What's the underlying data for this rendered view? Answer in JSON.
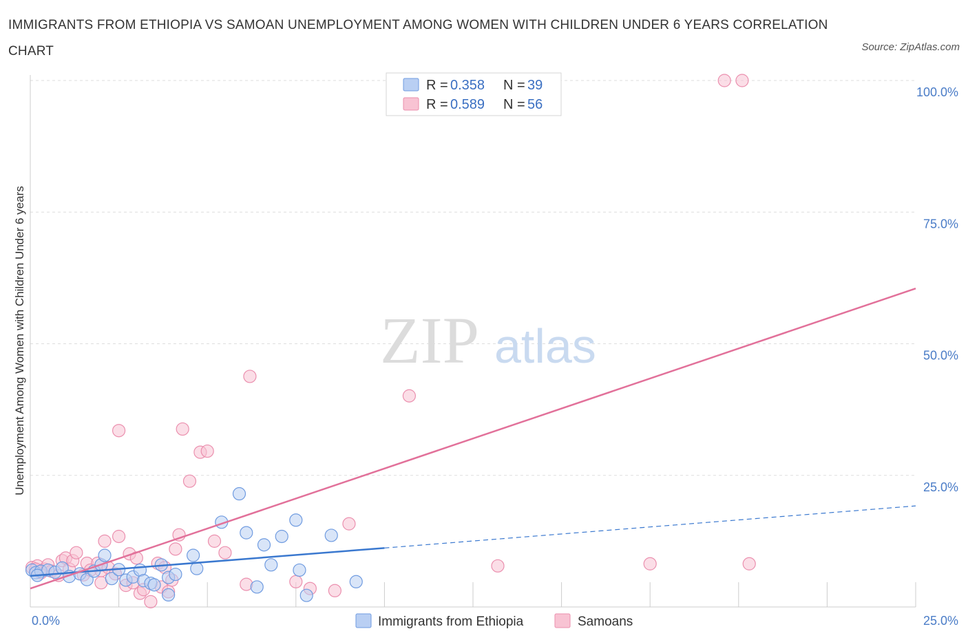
{
  "title": "IMMIGRANTS FROM ETHIOPIA VS SAMOAN UNEMPLOYMENT AMONG WOMEN WITH CHILDREN UNDER 6 YEARS CORRELATION CHART",
  "source": "Source: ZipAtlas.com",
  "watermark": {
    "zip": "ZIP",
    "atlas": "atlas"
  },
  "colors": {
    "ethiopia_fill": "#b9cff3",
    "ethiopia_stroke": "#6f9be0",
    "ethiopia_line": "#3a78cf",
    "samoan_fill": "#f8c3d3",
    "samoan_stroke": "#eb8fae",
    "samoan_line": "#e2719a",
    "grid": "#dddddd",
    "axis_label": "#4a7cc7"
  },
  "legend": {
    "rows": [
      {
        "r_label": "R = ",
        "r_value": "0.358",
        "n_label": "N = ",
        "n_value": "39"
      },
      {
        "r_label": "R = ",
        "r_value": "0.589",
        "n_label": "N = ",
        "n_value": "56"
      }
    ]
  },
  "bottom_legend": [
    "Immigrants from Ethiopia",
    "Samoans"
  ],
  "chart_data": {
    "type": "scatter",
    "title": "IMMIGRANTS FROM ETHIOPIA VS SAMOAN UNEMPLOYMENT AMONG WOMEN WITH CHILDREN UNDER 6 YEARS CORRELATION CHART",
    "xlabel": "",
    "ylabel": "Unemployment Among Women with Children Under 6 years",
    "xlim": [
      0,
      25
    ],
    "ylim": [
      0,
      100
    ],
    "x_tick_labels": [
      "0.0%",
      "25.0%"
    ],
    "y_ticks": [
      25,
      50,
      75,
      100
    ],
    "y_tick_labels": [
      "25.0%",
      "50.0%",
      "75.0%",
      "100.0%"
    ],
    "grid": true,
    "legend_position": "top-center",
    "series": [
      {
        "name": "Immigrants from Ethiopia",
        "R": 0.358,
        "N": 39,
        "trend": {
          "x0": 0,
          "y0": 5.9,
          "x1": 10,
          "y1": 11.2,
          "x_ext": 25,
          "y_ext": 19.2
        },
        "points": [
          [
            0.05,
            7.0
          ],
          [
            0.15,
            6.5
          ],
          [
            0.3,
            6.8
          ],
          [
            0.5,
            7.0
          ],
          [
            0.7,
            6.6
          ],
          [
            0.9,
            7.4
          ],
          [
            1.1,
            5.8
          ],
          [
            1.4,
            6.3
          ],
          [
            1.6,
            5.2
          ],
          [
            1.8,
            6.8
          ],
          [
            2.0,
            8.0
          ],
          [
            2.1,
            9.8
          ],
          [
            2.3,
            5.4
          ],
          [
            2.5,
            7.1
          ],
          [
            2.7,
            5.1
          ],
          [
            2.9,
            5.7
          ],
          [
            3.1,
            7.0
          ],
          [
            3.2,
            5.0
          ],
          [
            3.4,
            4.5
          ],
          [
            3.5,
            4.2
          ],
          [
            3.7,
            8.0
          ],
          [
            3.9,
            5.6
          ],
          [
            4.1,
            6.2
          ],
          [
            3.9,
            2.3
          ],
          [
            4.6,
            9.8
          ],
          [
            4.7,
            7.3
          ],
          [
            5.4,
            16.1
          ],
          [
            5.9,
            21.5
          ],
          [
            6.1,
            14.1
          ],
          [
            6.4,
            3.8
          ],
          [
            6.6,
            11.8
          ],
          [
            6.8,
            8.0
          ],
          [
            7.1,
            13.4
          ],
          [
            7.5,
            16.5
          ],
          [
            7.6,
            7.0
          ],
          [
            7.8,
            2.2
          ],
          [
            8.5,
            13.6
          ],
          [
            9.2,
            4.8
          ],
          [
            0.2,
            6.0
          ]
        ]
      },
      {
        "name": "Samoans",
        "R": 0.589,
        "N": 56,
        "trend": {
          "x0": 0,
          "y0": 3.5,
          "x1": 25,
          "y1": 60.5
        },
        "points": [
          [
            0.05,
            7.5
          ],
          [
            0.2,
            7.8
          ],
          [
            0.3,
            6.5
          ],
          [
            0.4,
            7.2
          ],
          [
            0.5,
            8.0
          ],
          [
            0.6,
            6.8
          ],
          [
            0.8,
            6.0
          ],
          [
            0.9,
            8.8
          ],
          [
            1.0,
            9.3
          ],
          [
            1.1,
            7.2
          ],
          [
            1.2,
            8.8
          ],
          [
            1.3,
            10.3
          ],
          [
            1.5,
            6.1
          ],
          [
            1.6,
            8.3
          ],
          [
            1.7,
            7.0
          ],
          [
            1.9,
            8.3
          ],
          [
            2.0,
            6.9
          ],
          [
            2.0,
            4.6
          ],
          [
            2.1,
            12.5
          ],
          [
            2.2,
            7.5
          ],
          [
            2.4,
            6.3
          ],
          [
            2.5,
            33.5
          ],
          [
            2.5,
            13.4
          ],
          [
            2.7,
            4.1
          ],
          [
            2.8,
            10.1
          ],
          [
            2.9,
            4.6
          ],
          [
            3.0,
            9.3
          ],
          [
            3.1,
            2.6
          ],
          [
            3.2,
            3.3
          ],
          [
            3.4,
            1.0
          ],
          [
            3.6,
            8.3
          ],
          [
            3.8,
            7.5
          ],
          [
            3.7,
            3.8
          ],
          [
            3.9,
            2.9
          ],
          [
            4.0,
            5.1
          ],
          [
            4.1,
            11.0
          ],
          [
            4.2,
            13.7
          ],
          [
            4.3,
            33.8
          ],
          [
            4.5,
            23.9
          ],
          [
            4.8,
            29.4
          ],
          [
            5.0,
            29.6
          ],
          [
            5.2,
            12.5
          ],
          [
            5.5,
            10.3
          ],
          [
            6.1,
            4.3
          ],
          [
            6.2,
            43.8
          ],
          [
            7.5,
            4.8
          ],
          [
            7.9,
            3.5
          ],
          [
            8.6,
            3.1
          ],
          [
            9.0,
            15.8
          ],
          [
            10.7,
            40.1
          ],
          [
            13.2,
            7.8
          ],
          [
            17.5,
            8.2
          ],
          [
            19.6,
            100.0
          ],
          [
            20.1,
            100.0
          ],
          [
            20.3,
            8.2
          ],
          [
            0.15,
            7.2
          ]
        ]
      }
    ]
  }
}
